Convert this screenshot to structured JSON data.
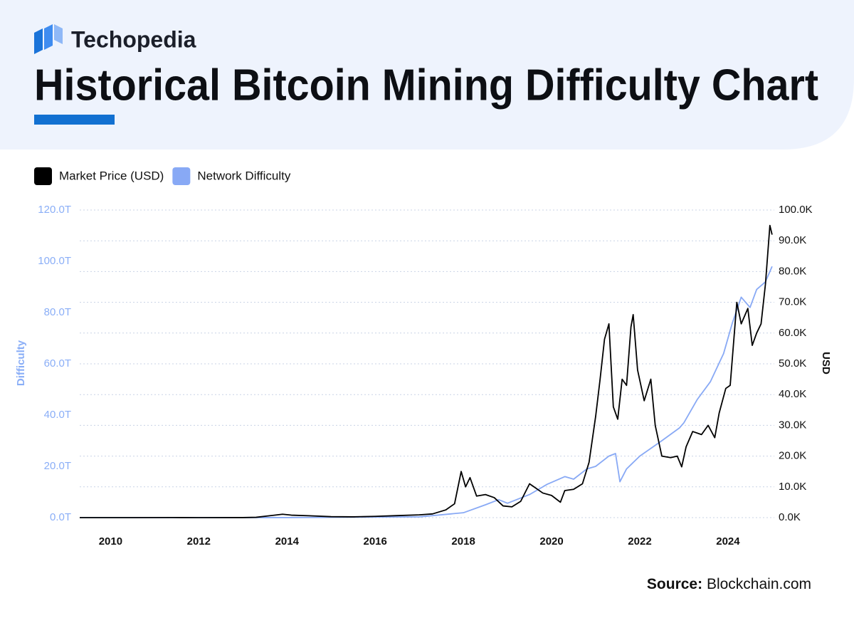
{
  "brand": "Techopedia",
  "chart_data": {
    "type": "line",
    "title": "Historical Bitcoin Mining Difficulty Chart",
    "y_label": "Difficulty",
    "y2_label": "USD",
    "source_label": "Source:",
    "source": "Blockchain.com",
    "grid": true,
    "legend": "top-left",
    "xlim": [
      2009.3,
      2025.05
    ],
    "xticks": [
      2010,
      2012,
      2014,
      2016,
      2018,
      2020,
      2022,
      2024
    ],
    "ylim": [
      0,
      120
    ],
    "yticks": [
      {
        "value": 0,
        "label": "0.0T"
      },
      {
        "value": 20,
        "label": "20.0T"
      },
      {
        "value": 40,
        "label": "40.0T"
      },
      {
        "value": 60,
        "label": "60.0T"
      },
      {
        "value": 80,
        "label": "80.0T"
      },
      {
        "value": 100,
        "label": "100.0T"
      },
      {
        "value": 120,
        "label": "120.0T"
      }
    ],
    "y2lim": [
      0,
      100
    ],
    "y2ticks": [
      {
        "value": 0,
        "label": "0.0K"
      },
      {
        "value": 10,
        "label": "10.0K"
      },
      {
        "value": 20,
        "label": "20.0K"
      },
      {
        "value": 30,
        "label": "30.0K"
      },
      {
        "value": 40,
        "label": "40.0K"
      },
      {
        "value": 50,
        "label": "50.0K"
      },
      {
        "value": 60,
        "label": "60.0K"
      },
      {
        "value": 70,
        "label": "70.0K"
      },
      {
        "value": 80,
        "label": "80.0K"
      },
      {
        "value": 90,
        "label": "90.0K"
      },
      {
        "value": 100,
        "label": "100.0K"
      }
    ],
    "y_color": "#8aaef7",
    "y2_color": "#111111",
    "series": [
      {
        "name": "Market Price (USD)",
        "color": "#000000",
        "axis": "y2",
        "x": [
          2009.3,
          2010.5,
          2011.4,
          2012.0,
          2013.0,
          2013.3,
          2013.9,
          2014.1,
          2014.5,
          2015.0,
          2015.5,
          2016.0,
          2016.5,
          2017.0,
          2017.3,
          2017.6,
          2017.8,
          2017.95,
          2018.05,
          2018.15,
          2018.3,
          2018.5,
          2018.7,
          2018.9,
          2019.1,
          2019.3,
          2019.5,
          2019.6,
          2019.8,
          2020.0,
          2020.2,
          2020.3,
          2020.5,
          2020.7,
          2020.85,
          2021.0,
          2021.1,
          2021.2,
          2021.3,
          2021.4,
          2021.5,
          2021.6,
          2021.7,
          2021.8,
          2021.85,
          2021.95,
          2022.1,
          2022.25,
          2022.35,
          2022.5,
          2022.7,
          2022.85,
          2022.95,
          2023.05,
          2023.2,
          2023.4,
          2023.55,
          2023.7,
          2023.8,
          2023.95,
          2024.05,
          2024.2,
          2024.3,
          2024.45,
          2024.55,
          2024.65,
          2024.75,
          2024.85,
          2024.95,
          2025.0
        ],
        "values": [
          0,
          0,
          0.02,
          0.005,
          0.013,
          0.1,
          1.1,
          0.8,
          0.6,
          0.3,
          0.25,
          0.4,
          0.65,
          0.9,
          1.2,
          2.5,
          4.5,
          15,
          10,
          13,
          7,
          7.5,
          6.5,
          3.8,
          3.5,
          5.3,
          11,
          10,
          8,
          7.2,
          5,
          8.8,
          9.2,
          11,
          18,
          33,
          45,
          58,
          63,
          36,
          32,
          45,
          43,
          62,
          66,
          48,
          38,
          45,
          30,
          20,
          19.5,
          20,
          16.5,
          23,
          28,
          27,
          30,
          26,
          34,
          42,
          43,
          70,
          63,
          68,
          56,
          60,
          63,
          76,
          95,
          92
        ]
      },
      {
        "name": "Network Difficulty",
        "color": "#88a9f5",
        "axis": "y",
        "x": [
          2009.3,
          2014.0,
          2016.0,
          2017.0,
          2018.0,
          2018.5,
          2018.8,
          2019.0,
          2019.5,
          2019.9,
          2020.3,
          2020.5,
          2020.8,
          2021.0,
          2021.3,
          2021.45,
          2021.55,
          2021.7,
          2022.0,
          2022.5,
          2022.9,
          2023.0,
          2023.3,
          2023.6,
          2023.9,
          2024.1,
          2024.3,
          2024.5,
          2024.65,
          2024.85,
          2025.0
        ],
        "values": [
          0,
          0.02,
          0.2,
          0.3,
          1.9,
          5,
          7,
          5.6,
          9,
          13,
          16,
          15,
          19,
          20,
          24,
          25,
          14,
          19,
          24,
          30,
          35,
          37,
          46,
          53,
          64,
          76,
          86,
          82,
          89,
          92,
          98
        ]
      }
    ]
  }
}
